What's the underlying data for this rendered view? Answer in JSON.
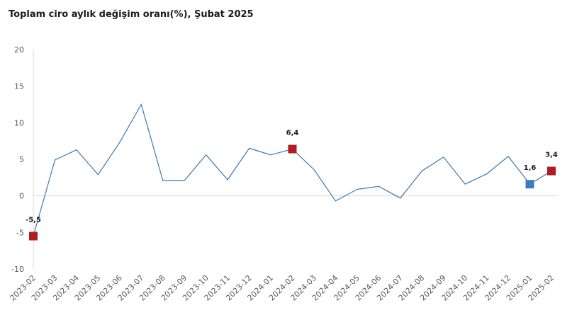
{
  "chart_data": {
    "type": "line",
    "title": "Toplam ciro aylık değişim oranı(%), Şubat 2025",
    "xlabel": "",
    "ylabel": "",
    "ylim": [
      -10,
      20
    ],
    "yticks": [
      "20",
      "15",
      "10",
      "5",
      "0",
      "-5",
      "-10"
    ],
    "grid": false,
    "colors": {
      "line": "#3a78ad",
      "marker_red": "#b01c21",
      "marker_blue": "#3a7dbf",
      "axis": "#d9d9d9"
    },
    "categories": [
      "2023-02",
      "2023-03",
      "2023-04",
      "2023-05",
      "2023-06",
      "2023-07",
      "2023-08",
      "2023-09",
      "2023-10",
      "2023-11",
      "2023-12",
      "2024-01",
      "2024-02",
      "2024-03",
      "2024-04",
      "2024-05",
      "2024-06",
      "2024-07",
      "2024-08",
      "2024-09",
      "2024-10",
      "2024-11",
      "2024-12",
      "2025-01",
      "2025-02"
    ],
    "values": [
      -5.5,
      4.9,
      6.3,
      2.9,
      7.3,
      12.5,
      2.1,
      2.1,
      5.6,
      2.2,
      6.5,
      5.6,
      6.4,
      3.6,
      -0.7,
      0.9,
      1.3,
      -0.3,
      3.4,
      5.3,
      1.6,
      3.0,
      5.4,
      1.6,
      3.4
    ],
    "highlights": [
      {
        "index": 0,
        "label": "-5,5",
        "color": "red"
      },
      {
        "index": 12,
        "label": "6,4",
        "color": "red"
      },
      {
        "index": 23,
        "label": "1,6",
        "color": "blue"
      },
      {
        "index": 24,
        "label": "3,4",
        "color": "red"
      }
    ]
  }
}
